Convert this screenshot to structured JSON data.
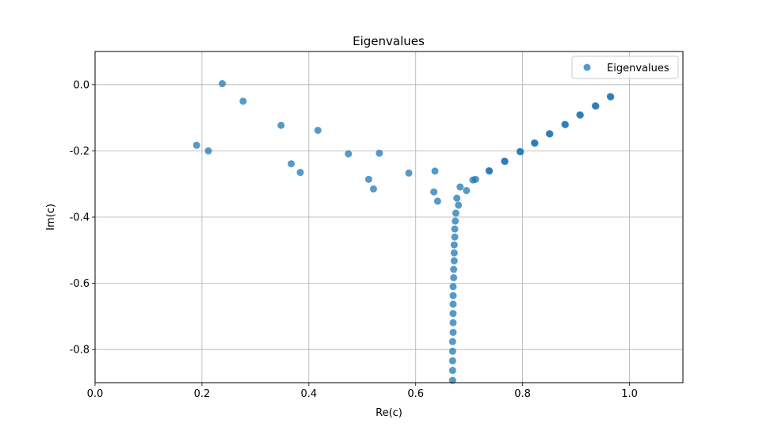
{
  "chart_data": {
    "type": "scatter",
    "title": "Eigenvalues",
    "xlabel": "Re(c)",
    "ylabel": "Im(c)",
    "xlim": [
      0.0,
      1.1
    ],
    "ylim": [
      -0.9,
      0.1
    ],
    "xticks": [
      "0.0",
      "0.2",
      "0.4",
      "0.6",
      "0.8",
      "1.0"
    ],
    "yticks": [
      "0.0",
      "-0.2",
      "-0.4",
      "-0.6",
      "-0.8"
    ],
    "grid": true,
    "legend_position": "top-right",
    "marker_color": "#1f77b4",
    "series": [
      {
        "name": "Eigenvalues",
        "points": [
          [
            0.238,
            0.003
          ],
          [
            0.277,
            -0.05
          ],
          [
            0.348,
            -0.123
          ],
          [
            0.417,
            -0.138
          ],
          [
            0.19,
            -0.183
          ],
          [
            0.212,
            -0.2
          ],
          [
            0.474,
            -0.209
          ],
          [
            0.532,
            -0.207
          ],
          [
            0.367,
            -0.239
          ],
          [
            0.384,
            -0.265
          ],
          [
            0.587,
            -0.267
          ],
          [
            0.636,
            -0.261
          ],
          [
            0.512,
            -0.286
          ],
          [
            0.521,
            -0.315
          ],
          [
            0.634,
            -0.324
          ],
          [
            0.641,
            -0.352
          ],
          [
            0.683,
            -0.309
          ],
          [
            0.695,
            -0.32
          ],
          [
            0.707,
            -0.288
          ],
          [
            0.712,
            -0.286
          ],
          [
            0.677,
            -0.343
          ],
          [
            0.68,
            -0.364
          ],
          [
            0.737,
            -0.26
          ],
          [
            0.738,
            -0.261
          ],
          [
            0.766,
            -0.231
          ],
          [
            0.767,
            -0.232
          ],
          [
            0.795,
            -0.202
          ],
          [
            0.796,
            -0.203
          ],
          [
            0.822,
            -0.176
          ],
          [
            0.823,
            -0.177
          ],
          [
            0.85,
            -0.148
          ],
          [
            0.851,
            -0.149
          ],
          [
            0.879,
            -0.12
          ],
          [
            0.88,
            -0.121
          ],
          [
            0.907,
            -0.091
          ],
          [
            0.908,
            -0.092
          ],
          [
            0.936,
            -0.064
          ],
          [
            0.937,
            -0.065
          ],
          [
            0.964,
            -0.036
          ],
          [
            0.965,
            -0.037
          ],
          [
            0.675,
            -0.388
          ],
          [
            0.674,
            -0.412
          ],
          [
            0.673,
            -0.436
          ],
          [
            0.673,
            -0.46
          ],
          [
            0.672,
            -0.484
          ],
          [
            0.672,
            -0.508
          ],
          [
            0.672,
            -0.532
          ],
          [
            0.671,
            -0.558
          ],
          [
            0.671,
            -0.583
          ],
          [
            0.67,
            -0.61
          ],
          [
            0.67,
            -0.637
          ],
          [
            0.67,
            -0.663
          ],
          [
            0.67,
            -0.691
          ],
          [
            0.67,
            -0.719
          ],
          [
            0.67,
            -0.748
          ],
          [
            0.669,
            -0.776
          ],
          [
            0.669,
            -0.805
          ],
          [
            0.669,
            -0.834
          ],
          [
            0.669,
            -0.863
          ],
          [
            0.669,
            -0.893
          ]
        ]
      }
    ]
  }
}
